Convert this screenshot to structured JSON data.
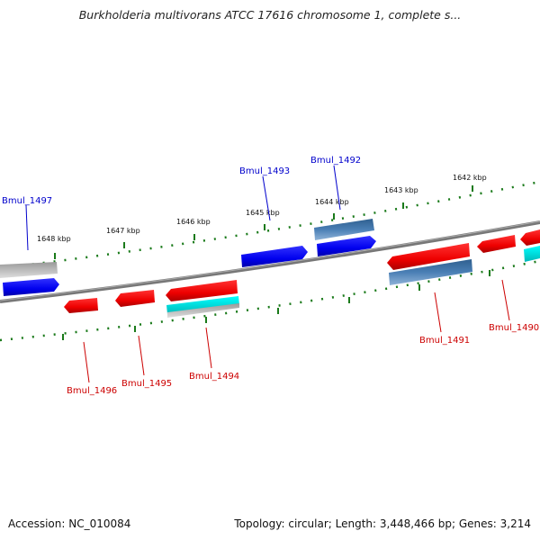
{
  "title": "Burkholderia multivorans ATCC 17616 chromosome 1, complete s...",
  "accession": "Accession: NC_010084",
  "summary": "Topology: circular; Length: 3,448,466 bp; Genes: 3,214",
  "scale_labels": [
    "1648 kbp",
    "1647 kbp",
    "1646 kbp",
    "1645 kbp",
    "1644 kbp",
    "1643 kbp",
    "1642 kbp"
  ],
  "genes_top": [
    "Bmul_1497",
    "Bmul_1493",
    "Bmul_1492"
  ],
  "genes_bottom": [
    "Bmul_1496",
    "Bmul_1495",
    "Bmul_1494",
    "Bmul_1491",
    "Bmul_1490"
  ],
  "colors": {
    "forward_gene": "#0000ee",
    "reverse_gene": "#ee0000",
    "blue_feature": "#4a7fb5",
    "cyan_feature": "#00e5e5",
    "grey_feature": "#bbbbbb",
    "scale_dots": "#1a7a1a",
    "backbone": "#777777",
    "top_label": "#0000cc",
    "bottom_label": "#cc0000"
  }
}
